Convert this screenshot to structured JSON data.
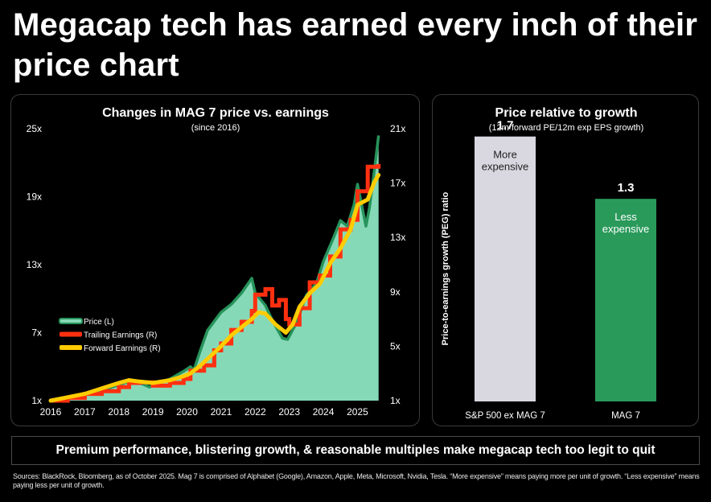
{
  "headline": "Megacap tech has earned every inch of their price chart",
  "banner": "Premium performance, blistering growth, & reasonable multiples make megacap tech too legit to quit",
  "footnote": "Sources: BlackRock, Bloomberg, as of October 2025. Mag 7 is comprised of Alphabet (Google), Amazon, Apple, Meta, Microsoft, Nvidia, Tesla. “More expensive” means paying more per unit of growth. “Less expensive” means paying less per unit of growth.",
  "colors": {
    "price_fill": "#86d9b7",
    "price_line": "#27935b",
    "trailing": "#ff3010",
    "forward": "#ffcc00",
    "bar_sp": "#d9d7e0",
    "bar_mag": "#2a9a5b"
  },
  "chart_data": [
    {
      "type": "line",
      "title": "Changes in MAG 7 price vs. earnings",
      "subtitle": "(since 2016)",
      "x_ticks": [
        "2016",
        "2017",
        "2018",
        "2019",
        "2020",
        "2021",
        "2022",
        "2023",
        "2024",
        "2025"
      ],
      "xlim": [
        2016,
        2025.65
      ],
      "y_left": {
        "ticks": [
          "1x",
          "7x",
          "13x",
          "19x",
          "25x"
        ],
        "lim": [
          1,
          25
        ]
      },
      "y_right": {
        "ticks": [
          "1x",
          "5x",
          "9x",
          "13x",
          "17x",
          "21x"
        ],
        "lim": [
          1,
          21
        ]
      },
      "legend": [
        "Price (L)",
        "Trailing Earnings (R)",
        "Forward Earnings (R)"
      ],
      "legend_position": "center-left",
      "series": [
        {
          "name": "Price (L)",
          "axis": "left",
          "style": "area",
          "x": [
            2016,
            2016.5,
            2017,
            2017.5,
            2018,
            2018.3,
            2018.6,
            2018.9,
            2019,
            2019.5,
            2019.9,
            2020.1,
            2020.2,
            2020.4,
            2020.6,
            2020.8,
            2021,
            2021.3,
            2021.6,
            2021.9,
            2022,
            2022.3,
            2022.5,
            2022.8,
            2022.95,
            2023.2,
            2023.5,
            2023.8,
            2024,
            2024.3,
            2024.5,
            2024.7,
            2024.9,
            2025,
            2025.25,
            2025.35,
            2025.5,
            2025.62
          ],
          "y": [
            1.0,
            1.25,
            1.55,
            1.9,
            2.4,
            2.7,
            2.6,
            2.2,
            2.4,
            2.9,
            3.6,
            4.0,
            3.7,
            5.5,
            7.2,
            8.0,
            8.8,
            9.5,
            10.5,
            11.8,
            10.5,
            9.4,
            8.1,
            6.5,
            6.4,
            7.8,
            10.3,
            11.4,
            13.3,
            15.4,
            16.9,
            16.4,
            18.3,
            20.1,
            16.4,
            18.0,
            21.4,
            24.4
          ]
        },
        {
          "name": "Trailing Earnings (R)",
          "axis": "right",
          "style": "step",
          "x": [
            2016,
            2016.5,
            2017,
            2017.5,
            2018,
            2018.3,
            2018.6,
            2019,
            2019.5,
            2019.9,
            2020.1,
            2020.5,
            2020.8,
            2021,
            2021.3,
            2021.6,
            2021.9,
            2022,
            2022.3,
            2022.5,
            2022.7,
            2022.9,
            2023,
            2023.3,
            2023.6,
            2023.9,
            2024.2,
            2024.5,
            2024.8,
            2025,
            2025.3,
            2025.62
          ],
          "y": [
            1.0,
            1.2,
            1.5,
            1.7,
            2.0,
            2.3,
            2.35,
            2.1,
            2.3,
            2.6,
            3.2,
            3.6,
            4.7,
            5.2,
            6.2,
            6.8,
            7.6,
            8.8,
            9.2,
            8.0,
            8.4,
            7.0,
            6.6,
            7.8,
            9.7,
            10.2,
            11.6,
            13.6,
            14.3,
            16.4,
            18.2,
            18.4
          ]
        },
        {
          "name": "Forward Earnings (R)",
          "axis": "right",
          "style": "line",
          "x": [
            2016,
            2016.5,
            2017,
            2017.5,
            2018,
            2018.3,
            2018.6,
            2019,
            2019.5,
            2019.9,
            2020.1,
            2020.4,
            2020.7,
            2021,
            2021.3,
            2021.6,
            2021.9,
            2022.1,
            2022.3,
            2022.6,
            2022.9,
            2023.1,
            2023.3,
            2023.6,
            2023.9,
            2024.2,
            2024.5,
            2024.8,
            2025,
            2025.3,
            2025.5,
            2025.62
          ],
          "y": [
            1.0,
            1.25,
            1.5,
            1.9,
            2.3,
            2.5,
            2.4,
            2.3,
            2.5,
            2.8,
            3.0,
            3.6,
            4.3,
            5.0,
            5.8,
            6.4,
            7.0,
            7.5,
            7.4,
            6.6,
            6.0,
            6.6,
            7.9,
            8.9,
            9.6,
            11.1,
            12.2,
            13.6,
            15.4,
            15.8,
            17.1,
            17.6
          ]
        }
      ]
    },
    {
      "type": "bar",
      "title": "Price relative to growth",
      "subtitle": "(12m forward PE/12m exp EPS growth)",
      "ylabel": "Price-to-earnings growth (PEG) ratio",
      "ylim": [
        0,
        1.75
      ],
      "categories": [
        "S&P 500 ex MAG 7",
        "MAG 7"
      ],
      "values": [
        1.7,
        1.3
      ],
      "value_labels": [
        "1.7",
        "1.3"
      ],
      "annotations": [
        [
          "More",
          "expensive"
        ],
        [
          "Less",
          "expensive"
        ]
      ]
    }
  ]
}
